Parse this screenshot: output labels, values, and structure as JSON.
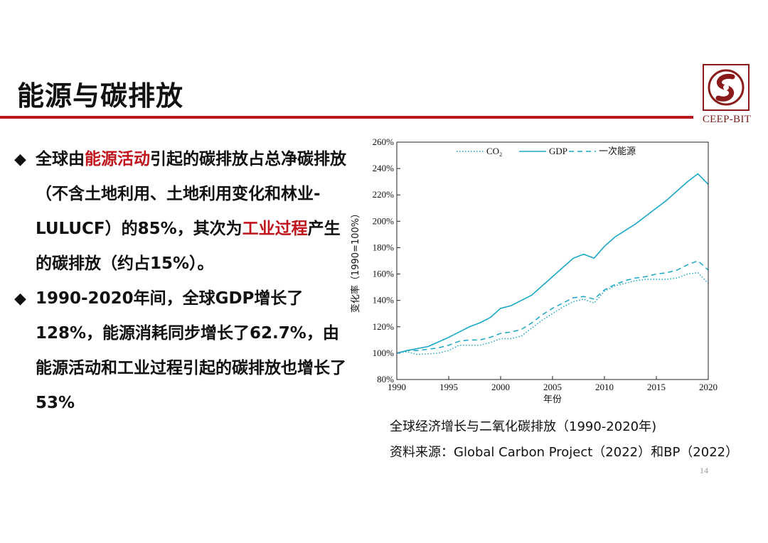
{
  "slide": {
    "title": "能源与碳排放",
    "page_number": "14",
    "logo_text": "CEEP-BIT"
  },
  "bullets": [
    {
      "segments": [
        {
          "text": "全球由",
          "highlight": false
        },
        {
          "text": "能源活动",
          "highlight": true
        },
        {
          "text": "引起的碳排放占总净碳排放（不含土地利用、土地利用变化和林业-LULUCF）的85%，其次为",
          "highlight": false
        },
        {
          "text": "工业过程",
          "highlight": true
        },
        {
          "text": "产生的碳排放（约占15%）。",
          "highlight": false
        }
      ]
    },
    {
      "segments": [
        {
          "text": "1990-2020年间，全球GDP增长了128%，能源消耗同步增长了62.7%，由能源活动和工业过程引起的碳排放也增长了53%",
          "highlight": false
        }
      ]
    }
  ],
  "caption": "全球经济增长与二氧化碳排放（1990-2020年)",
  "source": "资料来源：Global Carbon Project（2022）和BP（2022）",
  "chart_data": {
    "type": "line",
    "xlabel": "年份",
    "ylabel": "变化率（1990=100%）",
    "xlim": [
      1990,
      2020
    ],
    "ylim": [
      80,
      260
    ],
    "xticks": [
      "1990",
      "1995",
      "2000",
      "2005",
      "2010",
      "2015",
      "2020"
    ],
    "yticks": [
      "80%",
      "100%",
      "120%",
      "140%",
      "160%",
      "180%",
      "200%",
      "220%",
      "240%",
      "260%"
    ],
    "legend_position": "top",
    "x": [
      1990,
      1991,
      1992,
      1993,
      1994,
      1995,
      1996,
      1997,
      1998,
      1999,
      2000,
      2001,
      2002,
      2003,
      2004,
      2005,
      2006,
      2007,
      2008,
      2009,
      2010,
      2011,
      2012,
      2013,
      2014,
      2015,
      2016,
      2017,
      2018,
      2019,
      2020
    ],
    "series": [
      {
        "name_main": "CO",
        "name_sub": "2",
        "style": "dotted",
        "color": "#1aa7c8",
        "values": [
          100,
          101,
          99,
          99.5,
          100,
          102,
          106,
          106,
          106,
          108,
          111,
          111,
          113,
          119,
          125,
          130,
          135,
          139,
          141,
          138,
          147,
          151,
          153,
          155,
          156,
          156,
          156,
          157,
          160,
          161,
          153
        ]
      },
      {
        "name_main": "GDP",
        "name_sub": "",
        "style": "solid",
        "color": "#1aa7c8",
        "values": [
          100,
          102,
          103.5,
          105,
          108.5,
          112,
          116,
          120,
          123,
          127,
          134,
          136,
          140,
          144,
          151,
          158,
          165,
          172,
          175,
          172,
          181,
          188,
          193,
          198,
          204,
          210,
          216,
          223,
          230,
          236,
          228
        ]
      },
      {
        "name_main": "一次能源",
        "name_sub": "",
        "style": "dashed",
        "color": "#1aa7c8",
        "values": [
          100,
          102,
          102,
          103,
          104,
          106,
          109,
          110,
          110,
          112,
          115,
          116,
          118,
          123,
          129,
          134,
          138,
          142,
          143,
          141,
          148,
          152,
          155,
          157,
          158,
          160,
          161,
          163,
          167,
          170,
          163
        ]
      }
    ]
  }
}
